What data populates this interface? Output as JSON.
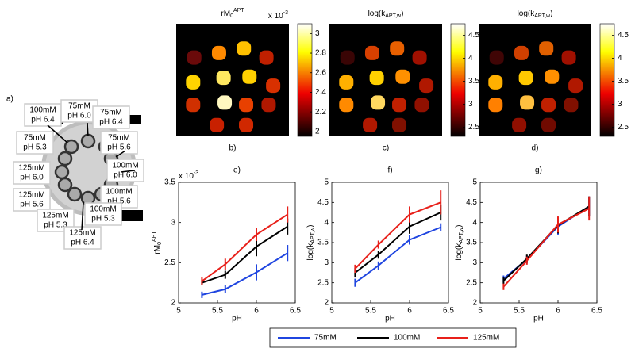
{
  "panel_a": {
    "label": "a)",
    "vials": [
      {
        "conc": "100mM",
        "ph": "pH 6.4"
      },
      {
        "conc": "75mM",
        "ph": "pH 6.0"
      },
      {
        "conc": "75mM",
        "ph": "pH 6.4"
      },
      {
        "conc": "75mM",
        "ph": "pH 5.3"
      },
      {
        "conc": "75mM",
        "ph": "pH 5.6"
      },
      {
        "conc": "125mM",
        "ph": "pH 6.0"
      },
      {
        "conc": "100mM",
        "ph": "pH 6.0"
      },
      {
        "conc": "125mM",
        "ph": "pH 5.6"
      },
      {
        "conc": "100mM",
        "ph": "pH 5.6"
      },
      {
        "conc": "125mM",
        "ph": "pH 5.3"
      },
      {
        "conc": "100mM",
        "ph": "pH 5.3"
      },
      {
        "conc": "125mM",
        "ph": "pH 6.4"
      }
    ]
  },
  "maps": [
    {
      "label": "b)",
      "title": {
        "base": "rM",
        "sub": "0",
        "sup": "APT"
      },
      "colorbar": {
        "clim": [
          1.95,
          3.1
        ],
        "ticks": [
          2,
          2.2,
          2.4,
          2.6,
          2.8,
          3
        ],
        "exponent": {
          "base": "x 10",
          "sup": "-3"
        }
      }
    },
    {
      "label": "c)",
      "title": {
        "base": "log(k",
        "sub": "APT,w",
        "tail": ")"
      },
      "colorbar": {
        "clim": [
          2.3,
          4.75
        ],
        "ticks": [
          2.5,
          3,
          3.5,
          4,
          4.5
        ]
      }
    },
    {
      "label": "d)",
      "title": {
        "base": "log(k",
        "sub": "APT,w",
        "tail": ")"
      },
      "colorbar": {
        "clim": [
          2.3,
          4.75
        ],
        "ticks": [
          2.5,
          3,
          3.5,
          4,
          4.5
        ]
      }
    }
  ],
  "legend": {
    "entries": [
      {
        "name": "75mM",
        "color": "#1f45e0"
      },
      {
        "name": "100mM",
        "color": "#000000"
      },
      {
        "name": "125mM",
        "color": "#e8201a"
      }
    ]
  },
  "chart_data": [
    {
      "type": "line",
      "label": "e)",
      "xlabel": "pH",
      "ylabel": {
        "base": "rM",
        "sub": "0",
        "sup": "APT"
      },
      "y_exponent": {
        "base": "x 10",
        "sup": "-3"
      },
      "xlim": [
        5,
        6.5
      ],
      "xticks": [
        5,
        5.5,
        6,
        6.5
      ],
      "ylim": [
        2,
        3.5
      ],
      "yticks": [
        2,
        2.5,
        3,
        3.5
      ],
      "x": [
        5.3,
        5.6,
        6.0,
        6.4
      ],
      "series": [
        {
          "values": [
            2.1,
            2.17,
            2.38,
            2.62
          ],
          "errors": [
            0.04,
            0.05,
            0.1,
            0.1
          ]
        },
        {
          "values": [
            2.25,
            2.35,
            2.7,
            2.95
          ],
          "errors": [
            0.03,
            0.05,
            0.12,
            0.1
          ]
        },
        {
          "values": [
            2.27,
            2.48,
            2.85,
            3.1
          ],
          "errors": [
            0.05,
            0.07,
            0.08,
            0.1
          ]
        }
      ]
    },
    {
      "type": "line",
      "label": "f)",
      "xlabel": "pH",
      "ylabel": {
        "base": "log(k",
        "sub": "APT,w",
        "tail": ")"
      },
      "xlim": [
        5,
        6.5
      ],
      "xticks": [
        5,
        5.5,
        6,
        6.5
      ],
      "ylim": [
        2,
        5
      ],
      "yticks": [
        2,
        2.5,
        3,
        3.5,
        4,
        4.5,
        5
      ],
      "x": [
        5.3,
        5.6,
        6.0,
        6.4
      ],
      "series": [
        {
          "values": [
            2.5,
            2.93,
            3.57,
            3.88
          ],
          "errors": [
            0.1,
            0.1,
            0.12,
            0.1
          ]
        },
        {
          "values": [
            2.75,
            3.2,
            3.9,
            4.25
          ],
          "errors": [
            0.12,
            0.1,
            0.18,
            0.2
          ]
        },
        {
          "values": [
            2.85,
            3.45,
            4.2,
            4.5
          ],
          "errors": [
            0.1,
            0.1,
            0.2,
            0.3
          ]
        }
      ]
    },
    {
      "type": "line",
      "label": "g)",
      "xlabel": "pH",
      "ylabel": {
        "base": "log(k",
        "sub": "APT,w",
        "tail": ")"
      },
      "xlim": [
        5,
        6.5
      ],
      "xticks": [
        5,
        5.5,
        6,
        6.5
      ],
      "ylim": [
        2,
        5
      ],
      "yticks": [
        2,
        2.5,
        3,
        3.5,
        4,
        4.5,
        5
      ],
      "x": [
        5.3,
        5.6,
        6.0,
        6.4
      ],
      "series": [
        {
          "values": [
            2.6,
            3.08,
            3.9,
            4.4
          ],
          "errors": [
            0.08,
            0.1,
            0.2,
            0.25
          ]
        },
        {
          "values": [
            2.55,
            3.1,
            3.93,
            4.4
          ],
          "errors": [
            0.08,
            0.1,
            0.2,
            0.25
          ]
        },
        {
          "values": [
            2.4,
            3.05,
            3.95,
            4.35
          ],
          "errors": [
            0.08,
            0.1,
            0.2,
            0.3
          ]
        }
      ]
    }
  ]
}
